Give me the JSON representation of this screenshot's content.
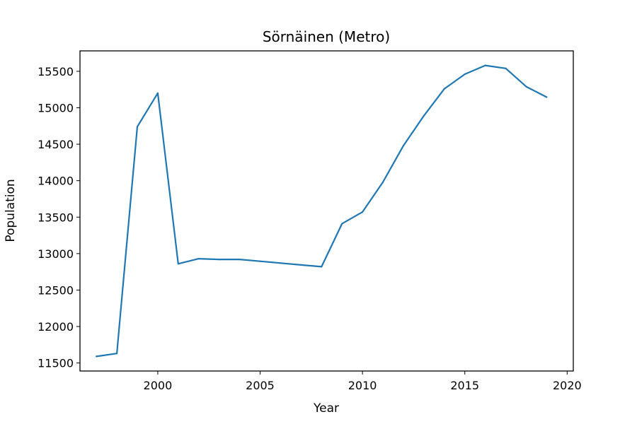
{
  "chart_data": {
    "type": "line",
    "title": "Sörnäinen (Metro)",
    "xlabel": "Year",
    "ylabel": "Population",
    "xlim": [
      1996.2,
      2020.3
    ],
    "ylim": [
      11390,
      15780
    ],
    "xticks": [
      "2000",
      "2005",
      "2010",
      "2015",
      "2020"
    ],
    "yticks": [
      "11500",
      "12000",
      "12500",
      "13000",
      "13500",
      "14000",
      "14500",
      "15000",
      "15500"
    ],
    "grid": false,
    "legend": "none",
    "series": [
      {
        "color": "#1f77b4",
        "x": [
          1997,
          1998,
          1999,
          2000,
          2001,
          2002,
          2003,
          2004,
          2005,
          2006,
          2007,
          2008,
          2009,
          2010,
          2011,
          2012,
          2013,
          2014,
          2015,
          2016,
          2017,
          2018,
          2019
        ],
        "y": [
          11590,
          11630,
          14740,
          15200,
          12860,
          12930,
          12920,
          12920,
          12895,
          12870,
          12845,
          12820,
          13410,
          13570,
          13980,
          14480,
          14890,
          15260,
          15460,
          15580,
          15540,
          15290,
          15145
        ]
      }
    ]
  }
}
